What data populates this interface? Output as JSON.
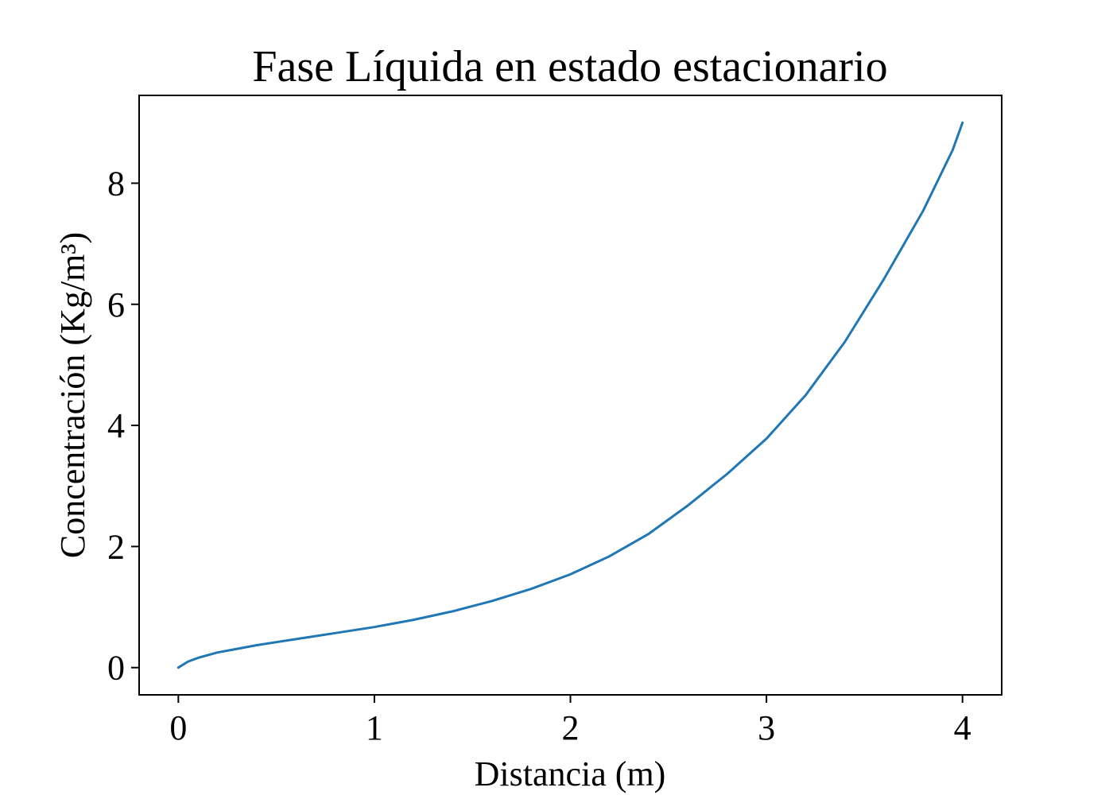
{
  "chart_data": {
    "type": "line",
    "title": "Fase Líquida en estado estacionario",
    "xlabel": "Distancia (m)",
    "ylabel": "Concentración (Kg/m³)",
    "xlim": [
      -0.2,
      4.2
    ],
    "ylim": [
      -0.45,
      9.45
    ],
    "xticks": [
      0,
      1,
      2,
      3,
      4
    ],
    "xtick_labels": [
      "0",
      "1",
      "2",
      "3",
      "4"
    ],
    "yticks": [
      0,
      2,
      4,
      6,
      8
    ],
    "ytick_labels": [
      "0",
      "2",
      "4",
      "6",
      "8"
    ],
    "grid": false,
    "series": [
      {
        "color": "#1f77b4",
        "x": [
          0,
          0.05,
          0.1,
          0.2,
          0.3,
          0.4,
          0.5,
          0.6,
          0.8,
          1.0,
          1.2,
          1.4,
          1.6,
          1.8,
          2.0,
          2.2,
          2.4,
          2.6,
          2.8,
          3.0,
          3.2,
          3.4,
          3.6,
          3.8,
          3.95,
          4.0
        ],
        "y": [
          0,
          0.1,
          0.16,
          0.25,
          0.31,
          0.37,
          0.42,
          0.47,
          0.57,
          0.67,
          0.79,
          0.93,
          1.1,
          1.3,
          1.54,
          1.84,
          2.21,
          2.68,
          3.2,
          3.78,
          4.5,
          5.38,
          6.42,
          7.55,
          8.55,
          9.0
        ]
      }
    ]
  }
}
